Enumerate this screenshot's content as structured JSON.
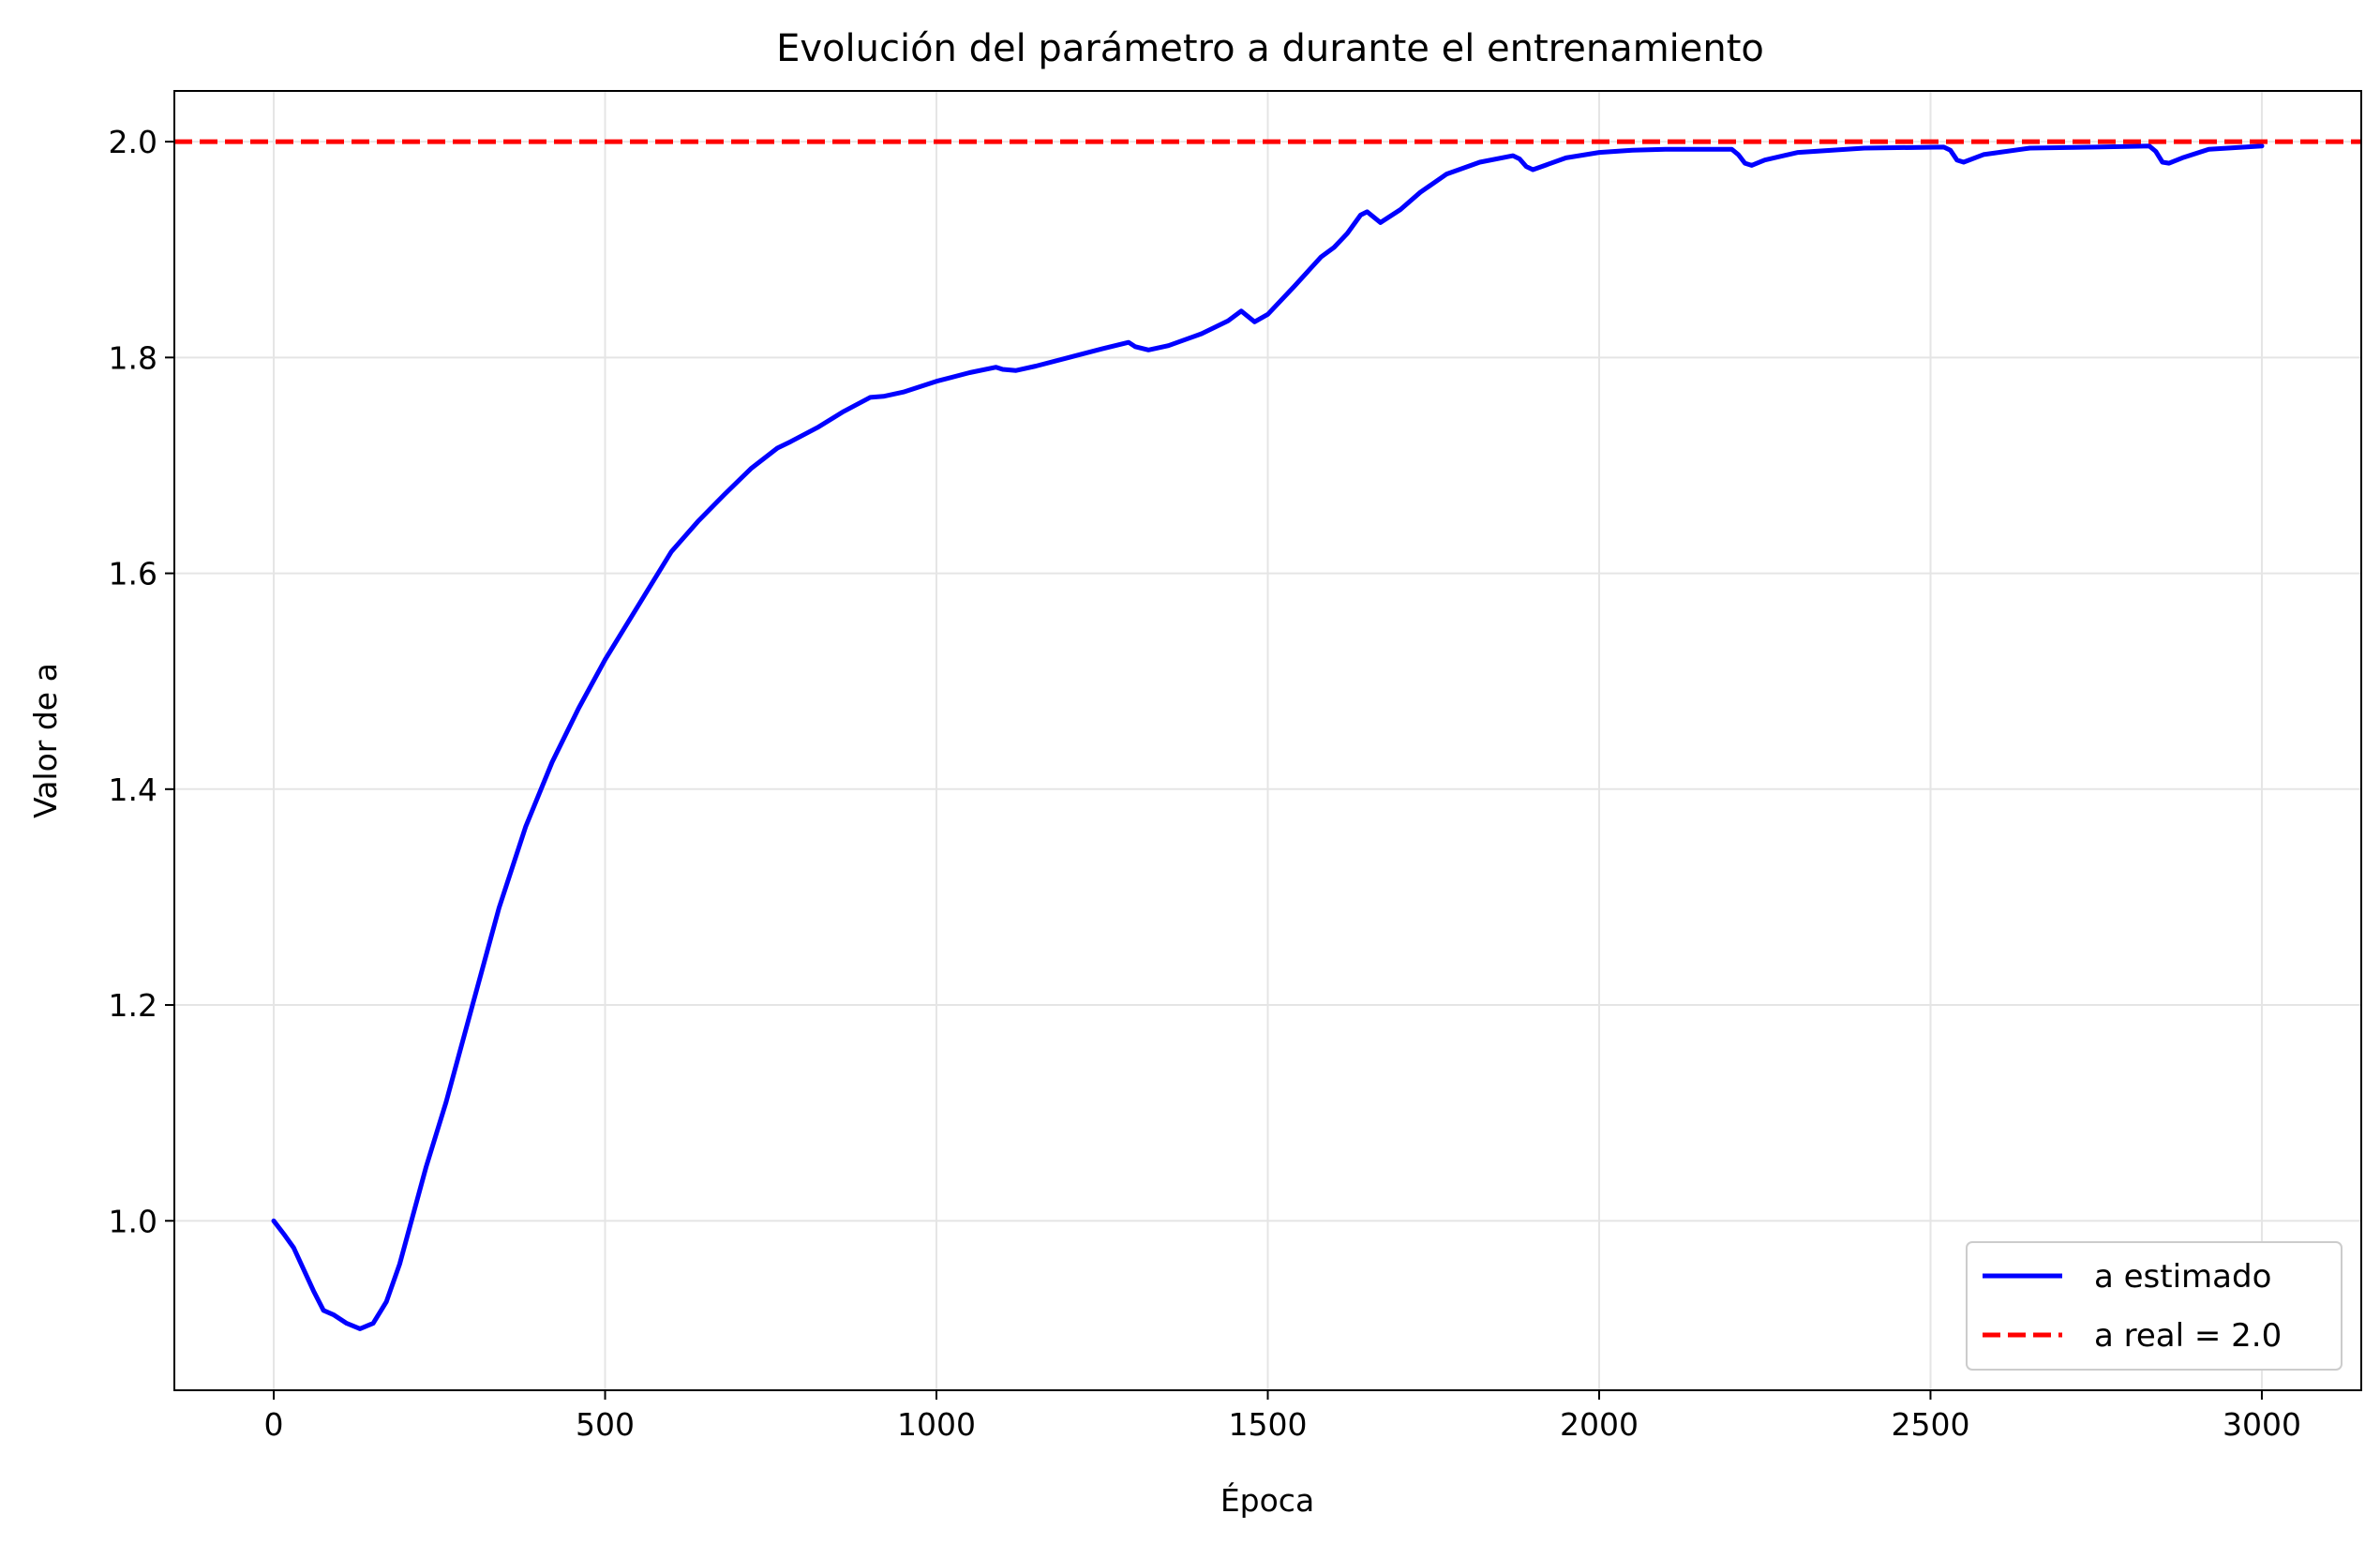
{
  "chart_data": {
    "type": "line",
    "title": "Evolución del parámetro a durante el entrenamiento",
    "xlabel": "Época",
    "ylabel": "Valor de a",
    "xlim": [
      -150,
      3150
    ],
    "ylim": [
      0.843,
      2.047
    ],
    "xticks": [
      0,
      500,
      1000,
      1500,
      2000,
      2500,
      3000
    ],
    "xtick_labels": [
      "0",
      "500",
      "1000",
      "1500",
      "2000",
      "2500",
      "3000"
    ],
    "yticks": [
      1.0,
      1.2,
      1.4,
      1.6,
      1.8,
      2.0
    ],
    "ytick_labels": [
      "1.0",
      "1.2",
      "1.4",
      "1.6",
      "1.8",
      "2.0"
    ],
    "grid": true,
    "legend_position": "lower-right",
    "series": [
      {
        "name": "a estimado",
        "color": "#0000ff",
        "style": "solid",
        "x": [
          0,
          15,
          30,
          45,
          60,
          75,
          90,
          110,
          130,
          150,
          170,
          190,
          210,
          230,
          260,
          300,
          340,
          380,
          420,
          460,
          500,
          540,
          560,
          600,
          640,
          680,
          720,
          760,
          780,
          820,
          860,
          900,
          920,
          950,
          1000,
          1050,
          1090,
          1100,
          1120,
          1150,
          1200,
          1250,
          1290,
          1300,
          1320,
          1350,
          1400,
          1440,
          1460,
          1470,
          1480,
          1500,
          1540,
          1580,
          1600,
          1620,
          1640,
          1650,
          1660,
          1670,
          1700,
          1730,
          1770,
          1820,
          1870,
          1880,
          1890,
          1900,
          1950,
          2000,
          2050,
          2100,
          2150,
          2200,
          2210,
          2220,
          2230,
          2250,
          2300,
          2400,
          2520,
          2530,
          2540,
          2550,
          2580,
          2650,
          2750,
          2830,
          2840,
          2850,
          2860,
          2880,
          2920,
          3000
        ],
        "y": [
          1.0,
          0.988,
          0.975,
          0.955,
          0.935,
          0.917,
          0.913,
          0.905,
          0.9,
          0.905,
          0.925,
          0.96,
          1.005,
          1.05,
          1.11,
          1.2,
          1.29,
          1.365,
          1.425,
          1.475,
          1.52,
          1.56,
          1.58,
          1.62,
          1.648,
          1.673,
          1.697,
          1.716,
          1.722,
          1.735,
          1.75,
          1.763,
          1.764,
          1.768,
          1.778,
          1.786,
          1.791,
          1.789,
          1.788,
          1.792,
          1.8,
          1.808,
          1.814,
          1.81,
          1.807,
          1.811,
          1.822,
          1.834,
          1.843,
          1.838,
          1.833,
          1.84,
          1.866,
          1.893,
          1.902,
          1.915,
          1.932,
          1.935,
          1.93,
          1.925,
          1.937,
          1.953,
          1.97,
          1.981,
          1.987,
          1.984,
          1.977,
          1.974,
          1.985,
          1.99,
          1.992,
          1.993,
          1.993,
          1.993,
          1.988,
          1.98,
          1.978,
          1.983,
          1.99,
          1.994,
          1.995,
          1.992,
          1.983,
          1.981,
          1.988,
          1.994,
          1.995,
          1.996,
          1.991,
          1.981,
          1.98,
          1.985,
          1.993,
          1.996
        ]
      },
      {
        "name": "a real = 2.0",
        "color": "#ff0000",
        "style": "dashed",
        "value": 2.0
      }
    ]
  }
}
